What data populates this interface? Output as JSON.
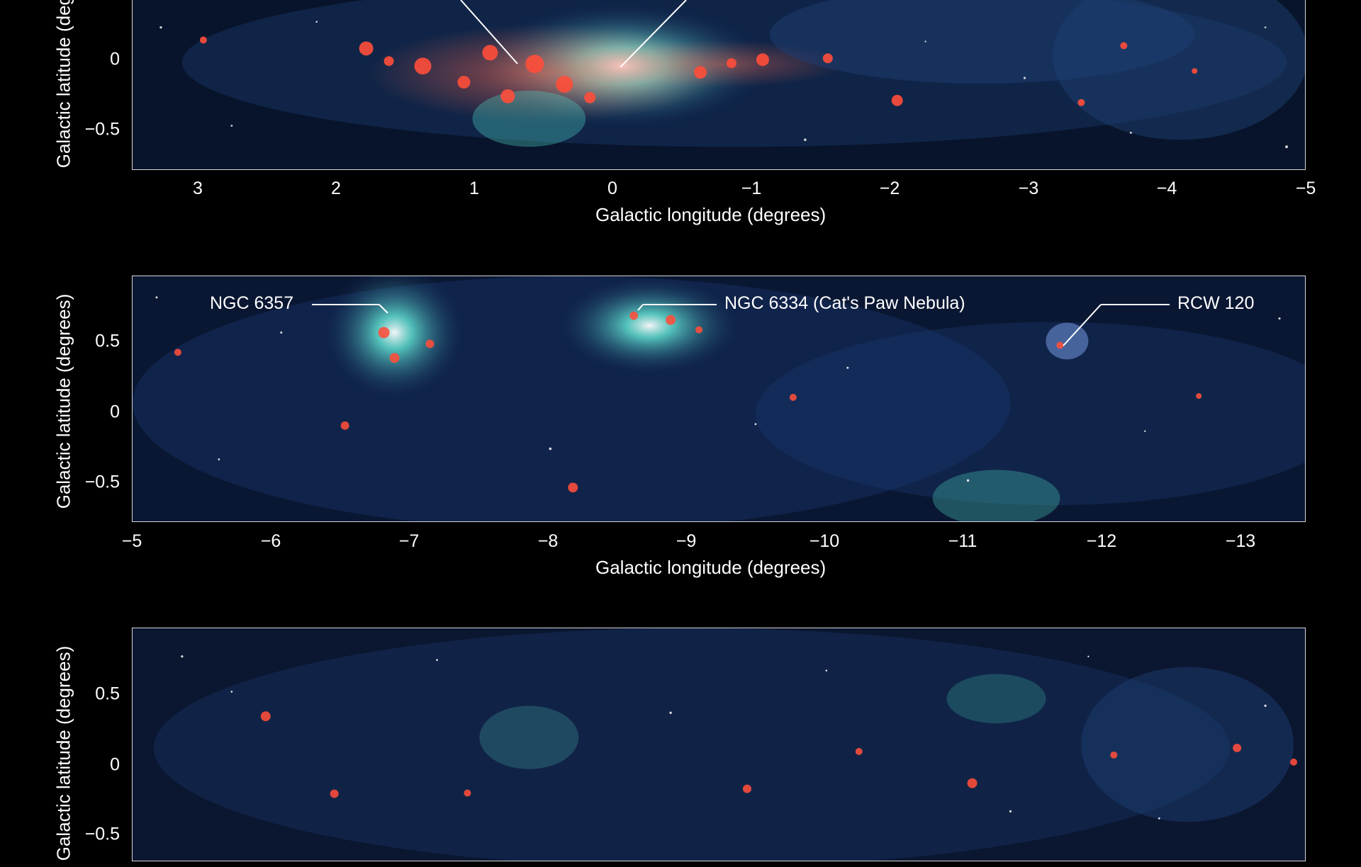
{
  "panels": [
    {
      "name": "panel-top",
      "ylabel": "Galactic latitude (degrees)",
      "xlabel": "Galactic longitude (degrees)",
      "xticks": [
        "3",
        "2",
        "1",
        "0",
        "−1",
        "−2",
        "−3",
        "−4",
        "−5"
      ],
      "yticks": [
        "0",
        "−0.5"
      ]
    },
    {
      "name": "panel-middle",
      "ylabel": "Galactic latitude (degrees)",
      "xlabel": "Galactic longitude (degrees)",
      "xticks": [
        "−5",
        "−6",
        "−7",
        "−8",
        "−9",
        "−10",
        "−11",
        "−12",
        "−13"
      ],
      "yticks": [
        "0.5",
        "0",
        "−0.5"
      ],
      "annotations": [
        "NGC 6357",
        "NGC 6334 (Cat's Paw Nebula)",
        "RCW 120"
      ]
    },
    {
      "name": "panel-bottom",
      "ylabel": "Galactic latitude (degrees)",
      "yticks": [
        "0.5",
        "0",
        "−0.5"
      ]
    }
  ],
  "colors": {
    "background": "#000000",
    "frame": "#d8d8d8",
    "gas-red": "#ff4e3a",
    "nebula-cyan": "#64e8d6",
    "dust-blue": "#2b4f99"
  }
}
